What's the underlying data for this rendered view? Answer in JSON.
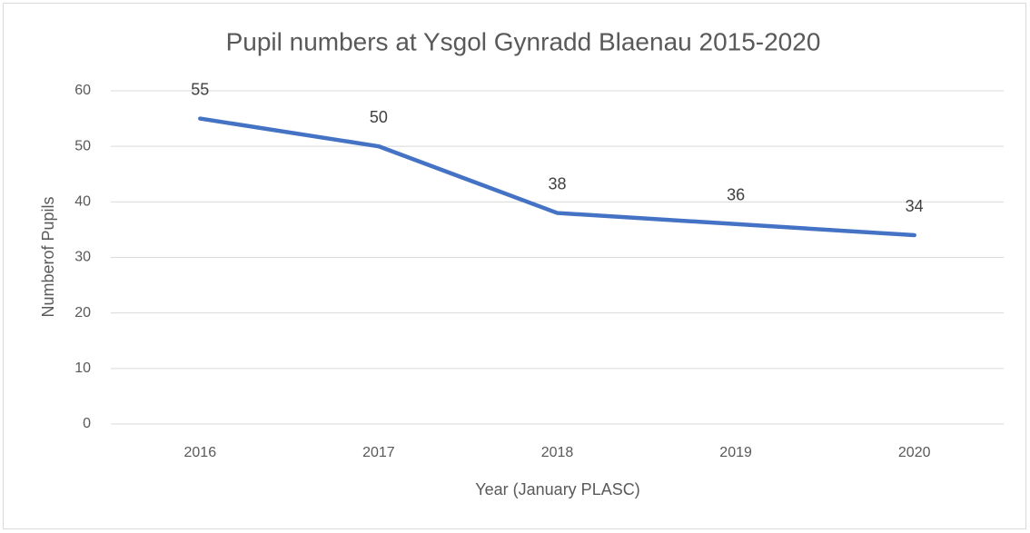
{
  "chart_data": {
    "type": "line",
    "title": "Pupil numbers at Ysgol Gynradd Blaenau 2015-2020",
    "x_label": "Year (January PLASC)",
    "y_label": "Numberof Pupils",
    "categories": [
      "2016",
      "2017",
      "2018",
      "2019",
      "2020"
    ],
    "series": [
      {
        "name": "Pupils",
        "color": "#4472c4",
        "values": [
          55,
          50,
          38,
          36,
          34
        ]
      }
    ],
    "ylim": [
      0,
      60
    ],
    "yticks": [
      0,
      10,
      20,
      30,
      40,
      50,
      60
    ],
    "grid": true,
    "data_labels": true
  }
}
